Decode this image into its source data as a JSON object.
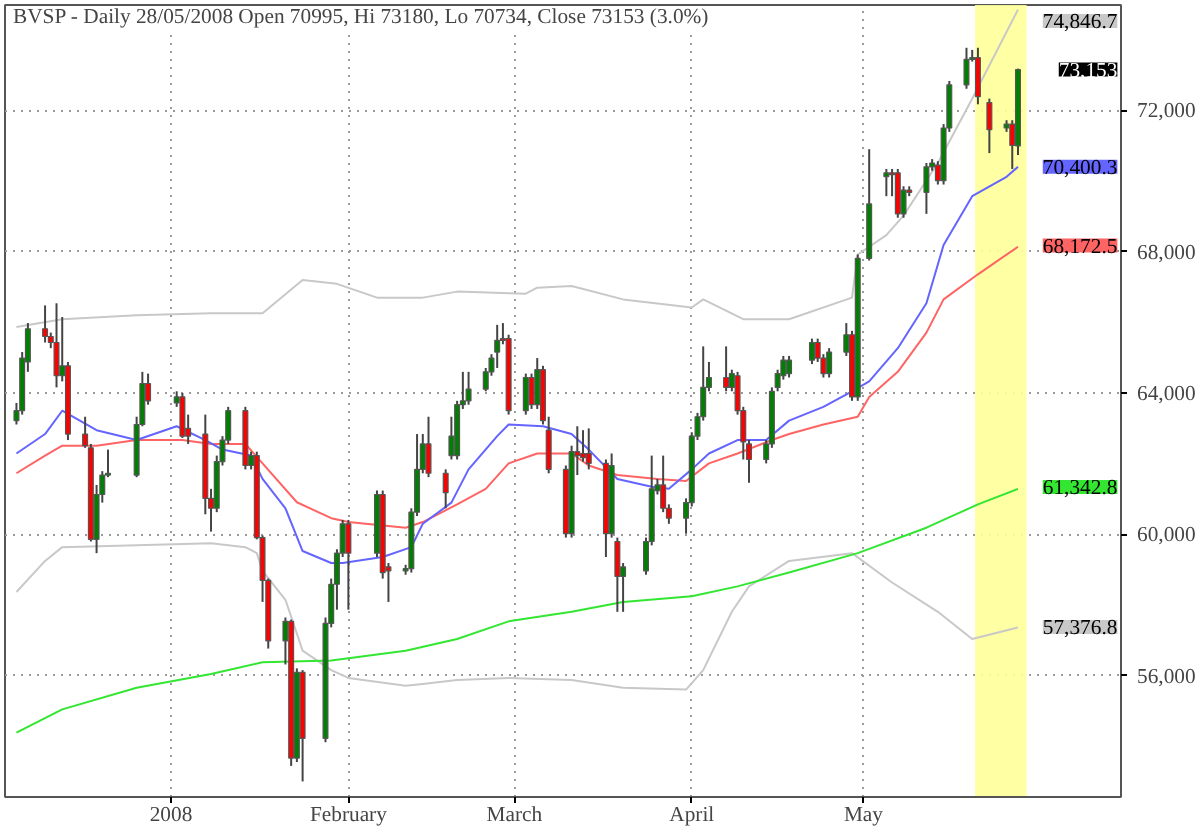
{
  "chart_data": {
    "type": "candlestick",
    "title": "BVSP - Daily 28/05/2008 Open 70995, Hi 73180, Lo 70734, Close 73153 (3.0%)",
    "x": [
      "2007-12-05",
      "2007-12-06",
      "2007-12-07",
      "2007-12-10",
      "2007-12-11",
      "2007-12-12",
      "2007-12-13",
      "2007-12-14",
      "2007-12-17",
      "2007-12-18",
      "2007-12-19",
      "2007-12-20",
      "2007-12-21",
      "2007-12-26",
      "2007-12-27",
      "2007-12-28",
      "2008-01-02",
      "2008-01-03",
      "2008-01-04",
      "2008-01-07",
      "2008-01-08",
      "2008-01-09",
      "2008-01-10",
      "2008-01-11",
      "2008-01-14",
      "2008-01-15",
      "2008-01-16",
      "2008-01-17",
      "2008-01-18",
      "2008-01-21",
      "2008-01-22",
      "2008-01-23",
      "2008-01-24",
      "2008-01-28",
      "2008-01-29",
      "2008-01-30",
      "2008-01-31",
      "2008-02-01",
      "2008-02-06",
      "2008-02-07",
      "2008-02-08",
      "2008-02-11",
      "2008-02-12",
      "2008-02-13",
      "2008-02-14",
      "2008-02-15",
      "2008-02-18",
      "2008-02-19",
      "2008-02-20",
      "2008-02-21",
      "2008-02-22",
      "2008-02-25",
      "2008-02-26",
      "2008-02-27",
      "2008-02-28",
      "2008-02-29",
      "2008-03-03",
      "2008-03-04",
      "2008-03-05",
      "2008-03-06",
      "2008-03-07",
      "2008-03-10",
      "2008-03-11",
      "2008-03-12",
      "2008-03-13",
      "2008-03-14",
      "2008-03-17",
      "2008-03-18",
      "2008-03-19",
      "2008-03-20",
      "2008-03-24",
      "2008-03-25",
      "2008-03-26",
      "2008-03-27",
      "2008-03-28",
      "2008-03-31",
      "2008-04-01",
      "2008-04-02",
      "2008-04-03",
      "2008-04-04",
      "2008-04-07",
      "2008-04-08",
      "2008-04-09",
      "2008-04-10",
      "2008-04-11",
      "2008-04-14",
      "2008-04-15",
      "2008-04-16",
      "2008-04-17",
      "2008-04-18",
      "2008-04-22",
      "2008-04-23",
      "2008-04-24",
      "2008-04-25",
      "2008-04-28",
      "2008-04-29",
      "2008-04-30",
      "2008-05-02",
      "2008-05-05",
      "2008-05-06",
      "2008-05-07",
      "2008-05-08",
      "2008-05-09",
      "2008-05-12",
      "2008-05-13",
      "2008-05-14",
      "2008-05-15",
      "2008-05-16",
      "2008-05-19",
      "2008-05-20",
      "2008-05-21",
      "2008-05-23",
      "2008-05-26",
      "2008-05-27",
      "2008-05-28"
    ],
    "ohlc": [
      [
        63220,
        63720,
        63110,
        63500
      ],
      [
        63500,
        65160,
        63390,
        64990
      ],
      [
        64880,
        65980,
        64600,
        65820
      ],
      [
        65820,
        66480,
        65430,
        65600
      ],
      [
        65600,
        65710,
        65270,
        65430
      ],
      [
        65430,
        66540,
        64160,
        64490
      ],
      [
        64490,
        66150,
        64330,
        64770
      ],
      [
        64770,
        64880,
        62670,
        62840
      ],
      [
        62840,
        63330,
        62450,
        62510
      ],
      [
        62450,
        62560,
        59800,
        59860
      ],
      [
        59860,
        61400,
        59470,
        61130
      ],
      [
        61130,
        61790,
        60900,
        61680
      ],
      [
        61680,
        62400,
        61620,
        61730
      ],
      [
        61680,
        63330,
        61620,
        63110
      ],
      [
        63110,
        64600,
        63060,
        64270
      ],
      [
        64270,
        64550,
        63670,
        63780
      ],
      [
        63720,
        64050,
        63610,
        63890
      ],
      [
        63890,
        64000,
        62730,
        62780
      ],
      [
        63000,
        63390,
        62560,
        62780
      ],
      [
        62840,
        63390,
        60570,
        61020
      ],
      [
        61020,
        61290,
        60080,
        60740
      ],
      [
        60740,
        62230,
        60630,
        62060
      ],
      [
        62060,
        62780,
        61950,
        62670
      ],
      [
        62670,
        63610,
        62560,
        63500
      ],
      [
        63500,
        63610,
        61840,
        61950
      ],
      [
        61950,
        62340,
        61840,
        62230
      ],
      [
        62230,
        62340,
        59860,
        59910
      ],
      [
        59910,
        59970,
        58090,
        58700
      ],
      [
        58700,
        58750,
        56770,
        56990
      ],
      [
        56990,
        57650,
        56320,
        57540
      ],
      [
        57540,
        57590,
        53450,
        53670
      ],
      [
        53670,
        56210,
        53560,
        56100
      ],
      [
        56100,
        56160,
        53010,
        54230
      ],
      [
        54230,
        57650,
        54120,
        57480
      ],
      [
        57480,
        58750,
        57370,
        58590
      ],
      [
        58590,
        59580,
        57870,
        59470
      ],
      [
        59470,
        60410,
        59360,
        60300
      ],
      [
        60300,
        60410,
        57870,
        59470
      ],
      [
        59470,
        61240,
        59360,
        61130
      ],
      [
        61130,
        61240,
        58750,
        58920
      ],
      [
        59080,
        59190,
        58090,
        58970
      ],
      [
        58970,
        59140,
        58860,
        59030
      ],
      [
        59030,
        60740,
        58920,
        60630
      ],
      [
        60630,
        62840,
        60520,
        61840
      ],
      [
        61840,
        62840,
        61730,
        62560
      ],
      [
        62560,
        63330,
        61620,
        61730
      ],
      [
        61730,
        61840,
        60740,
        61180
      ],
      [
        62230,
        63330,
        62120,
        62780
      ],
      [
        62230,
        63780,
        62120,
        63670
      ],
      [
        63670,
        64600,
        63550,
        63780
      ],
      [
        63780,
        64600,
        63670,
        64110
      ],
      [
        64110,
        64710,
        64050,
        64600
      ],
      [
        64600,
        65100,
        64490,
        64990
      ],
      [
        65160,
        65930,
        64710,
        65490
      ],
      [
        65540,
        65980,
        65380,
        65490
      ],
      [
        65540,
        65650,
        63390,
        63500
      ],
      [
        63500,
        64550,
        63390,
        64440
      ],
      [
        64440,
        64550,
        63550,
        63670
      ],
      [
        63670,
        64990,
        63550,
        64660
      ],
      [
        64660,
        64770,
        63110,
        63220
      ],
      [
        62950,
        63330,
        61730,
        61840
      ],
      [
        61840,
        61950,
        59910,
        60020
      ],
      [
        60020,
        62510,
        59910,
        62340
      ],
      [
        62340,
        63060,
        61680,
        62230
      ],
      [
        62290,
        62950,
        62060,
        62170
      ],
      [
        62290,
        63000,
        61840,
        62010
      ],
      [
        62010,
        62120,
        59360,
        60020
      ],
      [
        60020,
        62290,
        59910,
        61950
      ],
      [
        59800,
        59910,
        57810,
        58810
      ],
      [
        58810,
        59190,
        57810,
        59080
      ],
      [
        58970,
        59910,
        58860,
        59800
      ],
      [
        59800,
        62230,
        59690,
        61290
      ],
      [
        61240,
        61570,
        61130,
        61400
      ],
      [
        61400,
        62230,
        60630,
        60740
      ],
      [
        60740,
        60850,
        60300,
        60460
      ],
      [
        60460,
        61020,
        60020,
        60900
      ],
      [
        60900,
        62890,
        60790,
        62780
      ],
      [
        62780,
        63440,
        62670,
        63330
      ],
      [
        63330,
        65320,
        63220,
        64160
      ],
      [
        64160,
        64880,
        64050,
        64440
      ],
      [
        64440,
        65320,
        64050,
        64160
      ],
      [
        64160,
        64660,
        64050,
        64550
      ],
      [
        64490,
        64600,
        63390,
        63500
      ],
      [
        63500,
        63610,
        62120,
        62620
      ],
      [
        62560,
        62670,
        61460,
        62120
      ],
      [
        62120,
        62670,
        62010,
        62560
      ],
      [
        62560,
        64160,
        62450,
        64050
      ],
      [
        64160,
        64660,
        64050,
        64550
      ],
      [
        64490,
        65050,
        64380,
        64930
      ],
      [
        64550,
        65050,
        64440,
        64930
      ],
      [
        64930,
        65540,
        64820,
        65430
      ],
      [
        65430,
        65540,
        64880,
        64990
      ],
      [
        64990,
        65100,
        64440,
        64550
      ],
      [
        64550,
        65270,
        64440,
        65160
      ],
      [
        65160,
        65980,
        65050,
        65650
      ],
      [
        65650,
        65760,
        63780,
        63890
      ],
      [
        63890,
        67920,
        63780,
        67810
      ],
      [
        67810,
        70900,
        67750,
        69350
      ],
      [
        70120,
        70340,
        69570,
        70230
      ],
      [
        70230,
        70340,
        69570,
        70180
      ],
      [
        70230,
        70340,
        68960,
        69070
      ],
      [
        69070,
        69850,
        68960,
        69740
      ],
      [
        69740,
        69850,
        69570,
        69680
      ],
      [
        69680,
        70510,
        69070,
        70400
      ],
      [
        70400,
        70620,
        70290,
        70510
      ],
      [
        70450,
        70560,
        69900,
        70010
      ],
      [
        70010,
        71610,
        69900,
        71500
      ],
      [
        71500,
        72830,
        71390,
        72720
      ],
      [
        72720,
        73770,
        72610,
        73440
      ],
      [
        73440,
        73710,
        73380,
        73490
      ],
      [
        73490,
        73770,
        72170,
        72390
      ],
      [
        72220,
        72330,
        70790,
        71450
      ],
      [
        71500,
        71720,
        71390,
        71610
      ],
      [
        71610,
        71720,
        70340,
        71010
      ],
      [
        70995,
        73180,
        70734,
        73153
      ]
    ],
    "colors": [
      "#008000",
      "#008000",
      "#008000",
      "#ff0000",
      "#ff0000",
      "#ff0000",
      "#008000",
      "#ff0000",
      "#ff0000",
      "#ff0000",
      "#008000",
      "#008000",
      "#008000",
      "#008000",
      "#008000",
      "#ff0000",
      "#008000",
      "#ff0000",
      "#ff0000",
      "#ff0000",
      "#ff0000",
      "#008000",
      "#008000",
      "#008000",
      "#ff0000",
      "#008000",
      "#ff0000",
      "#ff0000",
      "#ff0000",
      "#008000",
      "#ff0000",
      "#008000",
      "#ff0000",
      "#008000",
      "#008000",
      "#008000",
      "#008000",
      "#ff0000",
      "#008000",
      "#ff0000",
      "#ff0000",
      "#008000",
      "#008000",
      "#008000",
      "#008000",
      "#ff0000",
      "#ff0000",
      "#008000",
      "#008000",
      "#008000",
      "#008000",
      "#008000",
      "#008000",
      "#008000",
      "#ff0000",
      "#ff0000",
      "#008000",
      "#ff0000",
      "#008000",
      "#ff0000",
      "#ff0000",
      "#ff0000",
      "#008000",
      "#ff0000",
      "#ff0000",
      "#ff0000",
      "#ff0000",
      "#008000",
      "#ff0000",
      "#008000",
      "#008000",
      "#008000",
      "#008000",
      "#ff0000",
      "#ff0000",
      "#008000",
      "#008000",
      "#008000",
      "#008000",
      "#008000",
      "#ff0000",
      "#008000",
      "#ff0000",
      "#ff0000",
      "#ff0000",
      "#008000",
      "#008000",
      "#008000",
      "#008000",
      "#008000",
      "#008000",
      "#ff0000",
      "#ff0000",
      "#008000",
      "#008000",
      "#ff0000",
      "#008000",
      "#008000",
      "#008000",
      "#ff0000",
      "#ff0000",
      "#008000",
      "#ff0000",
      "#008000",
      "#008000",
      "#ff0000",
      "#008000",
      "#008000",
      "#008000",
      "#008000",
      "#ff0000",
      "#ff0000",
      "#008000",
      "#ff0000",
      "#008000"
    ],
    "series": [
      {
        "type": "line",
        "color": "#c8c8c8",
        "x": [
          "2007-12-05",
          "2007-12-13",
          "2007-12-26",
          "2008-01-08",
          "2008-01-17",
          "2008-01-24",
          "2008-01-30",
          "2008-02-06",
          "2008-02-14",
          "2008-02-20",
          "2008-03-03",
          "2008-03-05",
          "2008-03-11",
          "2008-03-20",
          "2008-04-01",
          "2008-04-03",
          "2008-04-10",
          "2008-04-18",
          "2008-04-29",
          "2008-04-30",
          "2008-05-05",
          "2008-05-08",
          "2008-05-14",
          "2008-05-20",
          "2008-05-28"
        ],
        "values": [
          65870,
          66090,
          66200,
          66260,
          66260,
          67200,
          67090,
          66700,
          66700,
          66870,
          66810,
          66980,
          67030,
          66650,
          66420,
          66650,
          66090,
          66090,
          66700,
          67920,
          68470,
          69020,
          70510,
          72330,
          74850
        ]
      },
      {
        "type": "line",
        "color": "#c8c8c8",
        "x": [
          "2007-12-05",
          "2007-12-10",
          "2007-12-13",
          "2007-12-26",
          "2008-01-08",
          "2008-01-14",
          "2008-01-16",
          "2008-01-17",
          "2008-01-21",
          "2008-01-24",
          "2008-01-29",
          "2008-02-01",
          "2008-02-11",
          "2008-02-14",
          "2008-02-20",
          "2008-02-29",
          "2008-03-11",
          "2008-03-20",
          "2008-03-31",
          "2008-04-03",
          "2008-04-08",
          "2008-04-11",
          "2008-04-18",
          "2008-04-29",
          "2008-05-06",
          "2008-05-14",
          "2008-05-20",
          "2008-05-28"
        ],
        "values": [
          58370,
          59250,
          59640,
          59690,
          59750,
          59640,
          59470,
          58970,
          58150,
          56710,
          56160,
          55940,
          55720,
          55770,
          55880,
          55940,
          55880,
          55660,
          55610,
          56160,
          57810,
          58530,
          59250,
          59470,
          58640,
          57810,
          57040,
          57370
        ]
      },
      {
        "type": "line",
        "color": "#32e632",
        "x": [
          "2007-12-05",
          "2007-12-13",
          "2007-12-26",
          "2008-01-08",
          "2008-01-17",
          "2008-01-29",
          "2008-02-11",
          "2008-02-20",
          "2008-02-29",
          "2008-03-11",
          "2008-03-20",
          "2008-04-01",
          "2008-04-09",
          "2008-04-18",
          "2008-04-30",
          "2008-05-12",
          "2008-05-21",
          "2008-05-28"
        ],
        "values": [
          54390,
          55050,
          55660,
          56050,
          56380,
          56430,
          56710,
          57040,
          57540,
          57810,
          58090,
          58250,
          58530,
          58920,
          59470,
          60190,
          60850,
          61290
        ]
      },
      {
        "type": "line",
        "color": "#ff6464",
        "x": [
          "2007-12-05",
          "2007-12-10",
          "2007-12-13",
          "2007-12-19",
          "2007-12-26",
          "2008-01-03",
          "2008-01-08",
          "2008-01-14",
          "2008-01-17",
          "2008-01-23",
          "2008-01-29",
          "2008-02-01",
          "2008-02-11",
          "2008-02-14",
          "2008-02-20",
          "2008-02-25",
          "2008-02-29",
          "2008-03-05",
          "2008-03-11",
          "2008-03-14",
          "2008-03-19",
          "2008-03-26",
          "2008-03-31",
          "2008-04-04",
          "2008-04-09",
          "2008-04-15",
          "2008-04-18",
          "2008-04-24",
          "2008-04-30",
          "2008-05-02",
          "2008-05-07",
          "2008-05-12",
          "2008-05-15",
          "2008-05-21",
          "2008-05-28"
        ],
        "values": [
          61730,
          62230,
          62510,
          62510,
          62670,
          62670,
          62560,
          62560,
          62010,
          60910,
          60460,
          60350,
          60190,
          60350,
          60850,
          61290,
          62010,
          62290,
          62290,
          61950,
          61680,
          61570,
          61510,
          62010,
          62290,
          62670,
          62840,
          63110,
          63330,
          63890,
          64600,
          65710,
          66650,
          67360,
          68140
        ]
      },
      {
        "type": "line",
        "color": "#6464ff",
        "x": [
          "2007-12-05",
          "2007-12-10",
          "2007-12-13",
          "2007-12-19",
          "2007-12-26",
          "2008-01-02",
          "2008-01-07",
          "2008-01-10",
          "2008-01-15",
          "2008-01-17",
          "2008-01-21",
          "2008-01-24",
          "2008-01-29",
          "2008-01-31",
          "2008-02-07",
          "2008-02-12",
          "2008-02-14",
          "2008-02-19",
          "2008-02-22",
          "2008-02-27",
          "2008-02-29",
          "2008-03-06",
          "2008-03-11",
          "2008-03-14",
          "2008-03-19",
          "2008-03-25",
          "2008-03-28",
          "2008-04-01",
          "2008-04-04",
          "2008-04-09",
          "2008-04-14",
          "2008-04-18",
          "2008-04-24",
          "2008-04-29",
          "2008-05-02",
          "2008-05-07",
          "2008-05-12",
          "2008-05-15",
          "2008-05-20",
          "2008-05-26",
          "2008-05-28"
        ],
        "values": [
          62290,
          62840,
          63500,
          62950,
          62670,
          63060,
          62670,
          62400,
          62230,
          61570,
          60740,
          59530,
          59190,
          59190,
          59360,
          59640,
          60300,
          60900,
          61840,
          62780,
          63110,
          63060,
          62840,
          62400,
          61570,
          61350,
          61290,
          61840,
          62290,
          62670,
          62670,
          63220,
          63610,
          64050,
          64330,
          65270,
          66540,
          68190,
          69570,
          70120,
          70400
        ]
      }
    ],
    "bands": [
      {
        "axis": "x",
        "from": "2008-05-20T12:00",
        "to": "2008-05-29T12:00",
        "color": "#ffff99"
      }
    ],
    "annotations": [
      {
        "text": "74,846.7",
        "x": "2008-05-28",
        "y": 74846.7
      },
      {
        "text": "73,153",
        "x": "2008-05-28",
        "y": 73153
      },
      {
        "text": "70,400.3",
        "x": "2008-05-28",
        "y": 70400.3
      },
      {
        "text": "68,172.5",
        "x": "2008-05-28",
        "y": 68172.5
      },
      {
        "text": "61,342.8",
        "x": "2008-05-28",
        "y": 61342.8
      },
      {
        "text": "57,376.8",
        "x": "2008-05-28",
        "y": 57376.8
      }
    ],
    "xlim": [
      "2007-12-03",
      "2008-06-15"
    ],
    "ylim": [
      52570,
      74980
    ],
    "xticks": [
      {
        "value": "2008",
        "label": "2008"
      },
      {
        "value": "2008-02",
        "label": "February"
      },
      {
        "value": "2008-03",
        "label": "March"
      },
      {
        "value": "2008-04",
        "label": "April"
      },
      {
        "value": "2008-05",
        "label": "May"
      }
    ],
    "yticks": [
      {
        "value": 56000,
        "label": "56,000"
      },
      {
        "value": 60000,
        "label": "60,000"
      },
      {
        "value": 64000,
        "label": "64,000"
      },
      {
        "value": 68000,
        "label": "68,000"
      },
      {
        "value": 72000,
        "label": "72,000"
      }
    ],
    "grid": true
  }
}
